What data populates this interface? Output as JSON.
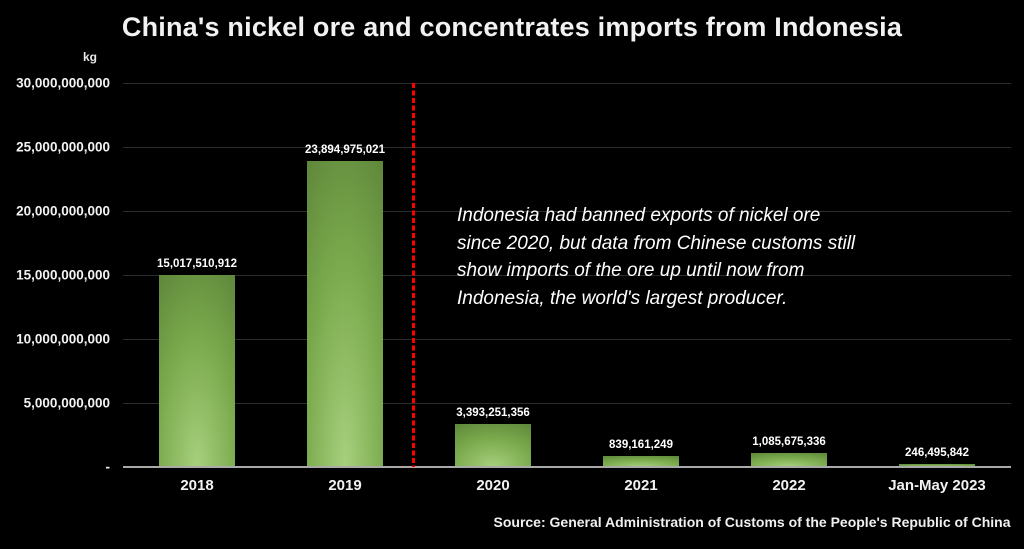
{
  "title": "China's nickel ore and concentrates imports from Indonesia",
  "annotation": {
    "lines": [
      "Indonesia had banned exports of nickel ore",
      "since 2020, but data from Chinese customs still",
      "show imports of the ore up until now from",
      "Indonesia, the world's largest producer."
    ]
  },
  "source": "Source: General Administration of Customs of the People's Republic of China",
  "chart_data": {
    "type": "bar",
    "title": "China's nickel ore and concentrates imports from Indonesia",
    "unit_label": "kg",
    "categories": [
      "2018",
      "2019",
      "2020",
      "2021",
      "2022",
      "Jan-May 2023"
    ],
    "values": [
      15017510912,
      23894975021,
      3393251356,
      839161249,
      1085675336,
      246495842
    ],
    "value_labels": [
      "15,017,510,912",
      "23,894,975,021",
      "3,393,251,356",
      "839,161,249",
      "1,085,675,336",
      "246,495,842"
    ],
    "xlabel": "",
    "ylabel": "kg",
    "ylim": [
      0,
      30000000000
    ],
    "ytick_step": 5000000000,
    "ytick_labels_top_to_bottom": [
      "30,000,000,000",
      "25,000,000,000",
      "20,000,000,000",
      "15,000,000,000",
      "10,000,000,000",
      "5,000,000,000",
      "-"
    ],
    "grid": true,
    "legend": false,
    "annotation_text": "Indonesia had banned exports of nickel ore since 2020, but data from Chinese customs still show imports of the ore up until now from Indonesia, the world's largest producer.",
    "divider_line": {
      "position": "between 2019 and 2020",
      "style": "dashed",
      "color": "#ff0000"
    },
    "colors": {
      "background": "#000000",
      "bar_gradient_dark": "#4e712f",
      "bar_gradient_mid": "#79a94c",
      "bar_gradient_light": "#a8d07e",
      "gridline": "#2d2d2d",
      "axis_line": "#a9a9a9",
      "text": "#ffffff"
    }
  }
}
